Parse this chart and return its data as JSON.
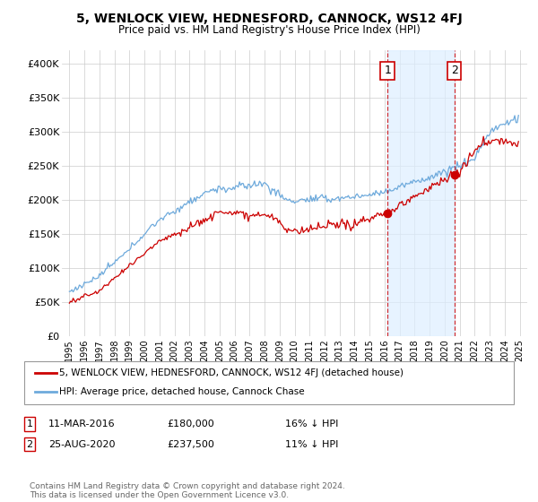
{
  "title": "5, WENLOCK VIEW, HEDNESFORD, CANNOCK, WS12 4FJ",
  "subtitle": "Price paid vs. HM Land Registry's House Price Index (HPI)",
  "legend_line1": "5, WENLOCK VIEW, HEDNESFORD, CANNOCK, WS12 4FJ (detached house)",
  "legend_line2": "HPI: Average price, detached house, Cannock Chase",
  "annotation1_date": "11-MAR-2016",
  "annotation1_price": "£180,000",
  "annotation1_hpi": "16% ↓ HPI",
  "annotation2_date": "25-AUG-2020",
  "annotation2_price": "£237,500",
  "annotation2_hpi": "11% ↓ HPI",
  "footer": "Contains HM Land Registry data © Crown copyright and database right 2024.\nThis data is licensed under the Open Government Licence v3.0.",
  "sale1_x": 2016.19,
  "sale1_y": 180000,
  "sale2_x": 2020.65,
  "sale2_y": 237500,
  "vline1_x": 2016.19,
  "vline2_x": 2020.65,
  "hpi_color": "#6eaadc",
  "price_color": "#cc0000",
  "vline_color": "#cc0000",
  "shade_color": "#ddeeff",
  "ylim_min": 0,
  "ylim_max": 420000,
  "xlim_min": 1994.5,
  "xlim_max": 2025.5,
  "yticks": [
    0,
    50000,
    100000,
    150000,
    200000,
    250000,
    300000,
    350000,
    400000
  ],
  "ytick_labels": [
    "£0",
    "£50K",
    "£100K",
    "£150K",
    "£200K",
    "£250K",
    "£300K",
    "£350K",
    "£400K"
  ],
  "xticks": [
    1995,
    1996,
    1997,
    1998,
    1999,
    2000,
    2001,
    2002,
    2003,
    2004,
    2005,
    2006,
    2007,
    2008,
    2009,
    2010,
    2011,
    2012,
    2013,
    2014,
    2015,
    2016,
    2017,
    2018,
    2019,
    2020,
    2021,
    2022,
    2023,
    2024,
    2025
  ]
}
